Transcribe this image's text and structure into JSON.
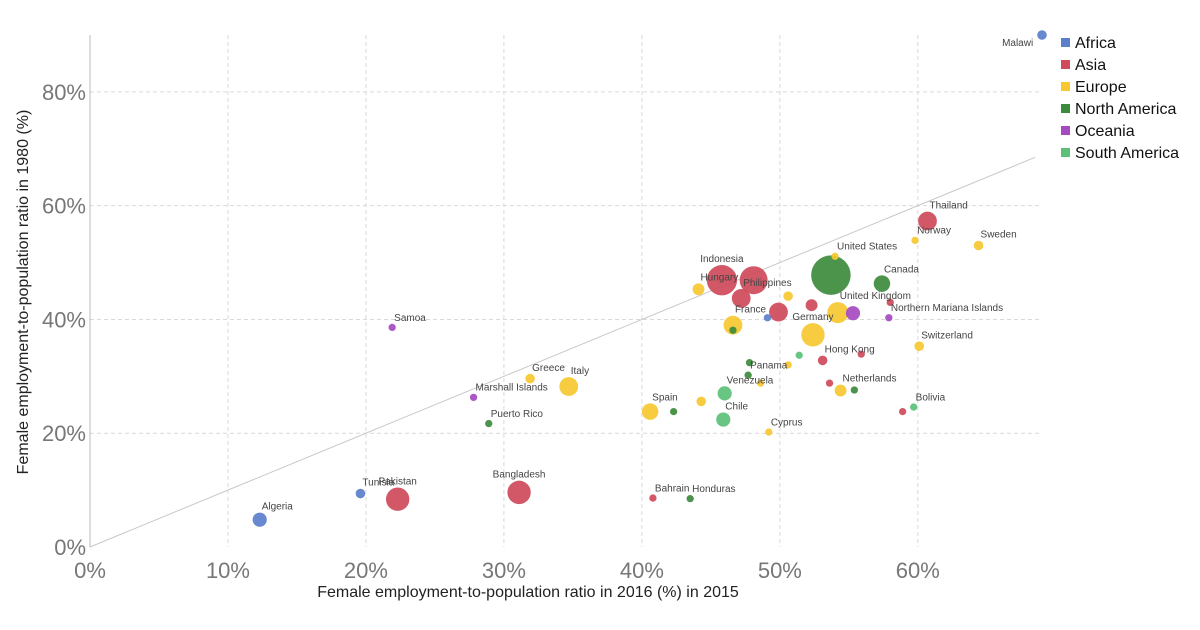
{
  "chart_data": {
    "type": "scatter",
    "xlabel": "Female employment-to-population ratio in 2016 (%) in 2015",
    "ylabel": "Female employment-to-population ratio in 1980 (%)",
    "xlim": [
      0,
      69
    ],
    "ylim": [
      0,
      90
    ],
    "x_ticks": [
      "0%",
      "10%",
      "20%",
      "30%",
      "40%",
      "50%",
      "60%"
    ],
    "y_ticks": [
      "0%",
      "20%",
      "40%",
      "60%",
      "80%"
    ],
    "grid": true,
    "reference_line": "y = x",
    "legend_position": "right",
    "colors": {
      "Africa": "#5b7fcb",
      "Asia": "#cf4a5a",
      "Europe": "#f7c830",
      "North America": "#3d8b3d",
      "Oceania": "#a54ac0",
      "South America": "#5cc07a"
    },
    "series": [
      {
        "name": "Africa",
        "points": [
          {
            "label": "Malawi",
            "x": 69.0,
            "y": 90.0,
            "size": 2
          },
          {
            "label": "Algeria",
            "x": 12.3,
            "y": 4.8,
            "size": 4
          },
          {
            "label": "Tunisia",
            "x": 19.6,
            "y": 9.4,
            "size": 2
          },
          {
            "label": "",
            "x": 49.1,
            "y": 40.3,
            "size": 1
          }
        ]
      },
      {
        "name": "Asia",
        "points": [
          {
            "label": "Thailand",
            "x": 60.7,
            "y": 57.3,
            "size": 6
          },
          {
            "label": "Indonesia",
            "x": 45.8,
            "y": 46.9,
            "size": 11
          },
          {
            "label": "",
            "x": 48.1,
            "y": 46.9,
            "size": 10
          },
          {
            "label": "Philippines",
            "x": 47.2,
            "y": 43.7,
            "size": 6
          },
          {
            "label": "",
            "x": 49.9,
            "y": 41.3,
            "size": 6
          },
          {
            "label": "",
            "x": 52.3,
            "y": 42.5,
            "size": 3
          },
          {
            "label": "Hong Kong",
            "x": 53.1,
            "y": 32.8,
            "size": 2
          },
          {
            "label": "",
            "x": 55.9,
            "y": 33.9,
            "size": 1
          },
          {
            "label": "",
            "x": 53.6,
            "y": 28.8,
            "size": 1
          },
          {
            "label": "",
            "x": 58.0,
            "y": 43.0,
            "size": 1
          },
          {
            "label": "",
            "x": 58.9,
            "y": 23.8,
            "size": 1
          },
          {
            "label": "Pakistan",
            "x": 22.3,
            "y": 8.4,
            "size": 8
          },
          {
            "label": "Bangladesh",
            "x": 31.1,
            "y": 9.6,
            "size": 8
          },
          {
            "label": "Bahrain",
            "x": 40.8,
            "y": 8.6,
            "size": 1
          }
        ]
      },
      {
        "name": "Europe",
        "points": [
          {
            "label": "Norway",
            "x": 59.8,
            "y": 53.9,
            "size": 1
          },
          {
            "label": "Sweden",
            "x": 64.4,
            "y": 53.0,
            "size": 2
          },
          {
            "label": "United States",
            "x": 54.0,
            "y": 51.1,
            "size": 1
          },
          {
            "label": "Hungary",
            "x": 44.1,
            "y": 45.3,
            "size": 3
          },
          {
            "label": "",
            "x": 50.6,
            "y": 44.1,
            "size": 2
          },
          {
            "label": "United Kingdom",
            "x": 54.2,
            "y": 41.2,
            "size": 7
          },
          {
            "label": "France",
            "x": 46.6,
            "y": 39.0,
            "size": 6
          },
          {
            "label": "Germany",
            "x": 52.4,
            "y": 37.3,
            "size": 8
          },
          {
            "label": "Switzerland",
            "x": 60.1,
            "y": 35.3,
            "size": 2
          },
          {
            "label": "",
            "x": 50.6,
            "y": 32.0,
            "size": 1
          },
          {
            "label": "",
            "x": 48.6,
            "y": 28.8,
            "size": 1
          },
          {
            "label": "Netherlands",
            "x": 54.4,
            "y": 27.5,
            "size": 3
          },
          {
            "label": "Greece",
            "x": 31.9,
            "y": 29.6,
            "size": 2
          },
          {
            "label": "Italy",
            "x": 34.7,
            "y": 28.2,
            "size": 6
          },
          {
            "label": "",
            "x": 44.3,
            "y": 25.6,
            "size": 2
          },
          {
            "label": "Spain",
            "x": 40.6,
            "y": 23.8,
            "size": 5
          },
          {
            "label": "Cyprus",
            "x": 49.2,
            "y": 20.2,
            "size": 1
          }
        ]
      },
      {
        "name": "North America",
        "points": [
          {
            "label": "",
            "x": 53.7,
            "y": 47.8,
            "size": 15
          },
          {
            "label": "Canada",
            "x": 57.4,
            "y": 46.3,
            "size": 5
          },
          {
            "label": "",
            "x": 46.6,
            "y": 38.1,
            "size": 1
          },
          {
            "label": "",
            "x": 47.8,
            "y": 32.4,
            "size": 1
          },
          {
            "label": "Panama",
            "x": 47.7,
            "y": 30.2,
            "size": 1
          },
          {
            "label": "",
            "x": 55.4,
            "y": 27.6,
            "size": 1
          },
          {
            "label": "",
            "x": 42.3,
            "y": 23.8,
            "size": 1
          },
          {
            "label": "Puerto Rico",
            "x": 28.9,
            "y": 21.7,
            "size": 1
          },
          {
            "label": "Honduras",
            "x": 43.5,
            "y": 8.5,
            "size": 1
          }
        ]
      },
      {
        "name": "Oceania",
        "points": [
          {
            "label": "Samoa",
            "x": 21.9,
            "y": 38.6,
            "size": 1
          },
          {
            "label": "Marshall Islands",
            "x": 27.8,
            "y": 26.3,
            "size": 1
          },
          {
            "label": "",
            "x": 55.3,
            "y": 41.1,
            "size": 4
          },
          {
            "label": "Northern Mariana Islands",
            "x": 57.9,
            "y": 40.3,
            "size": 1
          }
        ]
      },
      {
        "name": "South America",
        "points": [
          {
            "label": "",
            "x": 51.4,
            "y": 33.7,
            "size": 1
          },
          {
            "label": "Venezuela",
            "x": 46.0,
            "y": 27.0,
            "size": 4
          },
          {
            "label": "Chile",
            "x": 45.9,
            "y": 22.4,
            "size": 4
          },
          {
            "label": "Bolivia",
            "x": 59.7,
            "y": 24.6,
            "size": 1
          }
        ]
      }
    ]
  }
}
